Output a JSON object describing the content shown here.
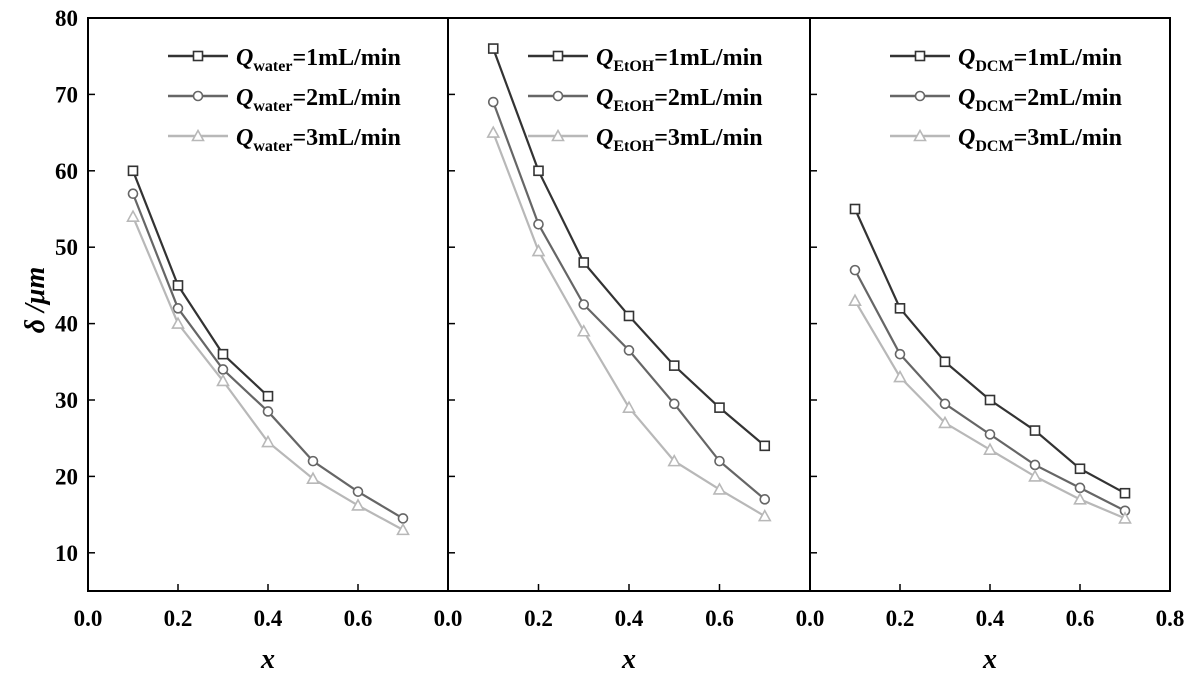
{
  "chart_data": [
    {
      "type": "line",
      "panel": "water",
      "legend_symbol": "Q",
      "legend_subscript": "water",
      "x": [
        0.1,
        0.2,
        0.3,
        0.4,
        0.5,
        0.6,
        0.7
      ],
      "series": [
        {
          "name": "Q_water=1mL/min",
          "label_suffix": "=1mL/min",
          "marker": "square",
          "color": "#333333",
          "points": [
            [
              0.1,
              60
            ],
            [
              0.2,
              45
            ],
            [
              0.3,
              36
            ],
            [
              0.4,
              30.5
            ]
          ]
        },
        {
          "name": "Q_water=2mL/min",
          "label_suffix": "=2mL/min",
          "marker": "circle",
          "color": "#666666",
          "points": [
            [
              0.1,
              57
            ],
            [
              0.2,
              42
            ],
            [
              0.3,
              34
            ],
            [
              0.4,
              28.5
            ],
            [
              0.5,
              22
            ],
            [
              0.6,
              18
            ],
            [
              0.7,
              14.5
            ]
          ]
        },
        {
          "name": "Q_water=3mL/min",
          "label_suffix": "=3mL/min",
          "marker": "triangle",
          "color": "#b8b8b8",
          "points": [
            [
              0.1,
              54
            ],
            [
              0.2,
              40
            ],
            [
              0.3,
              32.5
            ],
            [
              0.4,
              24.5
            ],
            [
              0.5,
              19.7
            ],
            [
              0.6,
              16.2
            ],
            [
              0.7,
              13
            ]
          ]
        }
      ],
      "xlim": [
        0.0,
        0.8
      ],
      "ylim": [
        5,
        80
      ],
      "xticks": [
        "0.0",
        "0.2",
        "0.4",
        "0.6"
      ],
      "yticks": [
        "10",
        "20",
        "30",
        "40",
        "50",
        "60",
        "70",
        "80"
      ],
      "xlabel": "x",
      "ylabel": "δ /μm",
      "legend": "top-right"
    },
    {
      "type": "line",
      "panel": "EtOH",
      "legend_symbol": "Q",
      "legend_subscript": "EtOH",
      "x": [
        0.1,
        0.2,
        0.3,
        0.4,
        0.5,
        0.6,
        0.7
      ],
      "series": [
        {
          "name": "Q_EtOH=1mL/min",
          "label_suffix": "=1mL/min",
          "marker": "square",
          "color": "#333333",
          "points": [
            [
              0.1,
              76
            ],
            [
              0.2,
              60
            ],
            [
              0.3,
              48
            ],
            [
              0.4,
              41
            ],
            [
              0.5,
              34.5
            ],
            [
              0.6,
              29
            ],
            [
              0.7,
              24
            ]
          ]
        },
        {
          "name": "Q_EtOH=2mL/min",
          "label_suffix": "=2mL/min",
          "marker": "circle",
          "color": "#666666",
          "points": [
            [
              0.1,
              69
            ],
            [
              0.2,
              53
            ],
            [
              0.3,
              42.5
            ],
            [
              0.4,
              36.5
            ],
            [
              0.5,
              29.5
            ],
            [
              0.6,
              22
            ],
            [
              0.7,
              17
            ]
          ]
        },
        {
          "name": "Q_EtOH=3mL/min",
          "label_suffix": "=3mL/min",
          "marker": "triangle",
          "color": "#b8b8b8",
          "points": [
            [
              0.1,
              65
            ],
            [
              0.2,
              49.5
            ],
            [
              0.3,
              39
            ],
            [
              0.4,
              29
            ],
            [
              0.5,
              22
            ],
            [
              0.6,
              18.3
            ],
            [
              0.7,
              14.8
            ]
          ]
        }
      ],
      "xlim": [
        0.0,
        0.8
      ],
      "ylim": [
        5,
        80
      ],
      "xticks": [
        "0.0",
        "0.2",
        "0.4",
        "0.6"
      ],
      "xlabel": "x",
      "legend": "top-right"
    },
    {
      "type": "line",
      "panel": "DCM",
      "legend_symbol": "Q",
      "legend_subscript": "DCM",
      "x": [
        0.1,
        0.2,
        0.3,
        0.4,
        0.5,
        0.6,
        0.7
      ],
      "series": [
        {
          "name": "Q_DCM=1mL/min",
          "label_suffix": "=1mL/min",
          "marker": "square",
          "color": "#333333",
          "points": [
            [
              0.1,
              55
            ],
            [
              0.2,
              42
            ],
            [
              0.3,
              35
            ],
            [
              0.4,
              30
            ],
            [
              0.5,
              26
            ],
            [
              0.6,
              21
            ],
            [
              0.7,
              17.8
            ]
          ]
        },
        {
          "name": "Q_DCM=2mL/min",
          "label_suffix": "=2mL/min",
          "marker": "circle",
          "color": "#666666",
          "points": [
            [
              0.1,
              47
            ],
            [
              0.2,
              36
            ],
            [
              0.3,
              29.5
            ],
            [
              0.4,
              25.5
            ],
            [
              0.5,
              21.5
            ],
            [
              0.6,
              18.5
            ],
            [
              0.7,
              15.5
            ]
          ]
        },
        {
          "name": "Q_DCM=3mL/min",
          "label_suffix": "=3mL/min",
          "marker": "triangle",
          "color": "#b8b8b8",
          "points": [
            [
              0.1,
              43
            ],
            [
              0.2,
              33
            ],
            [
              0.3,
              27
            ],
            [
              0.4,
              23.5
            ],
            [
              0.5,
              20
            ],
            [
              0.6,
              17
            ],
            [
              0.7,
              14.5
            ]
          ]
        }
      ],
      "xlim": [
        0.0,
        0.8
      ],
      "ylim": [
        5,
        80
      ],
      "xticks": [
        "0.0",
        "0.2",
        "0.4",
        "0.6",
        "0.8"
      ],
      "xlabel": "x",
      "legend": "top-right"
    }
  ]
}
